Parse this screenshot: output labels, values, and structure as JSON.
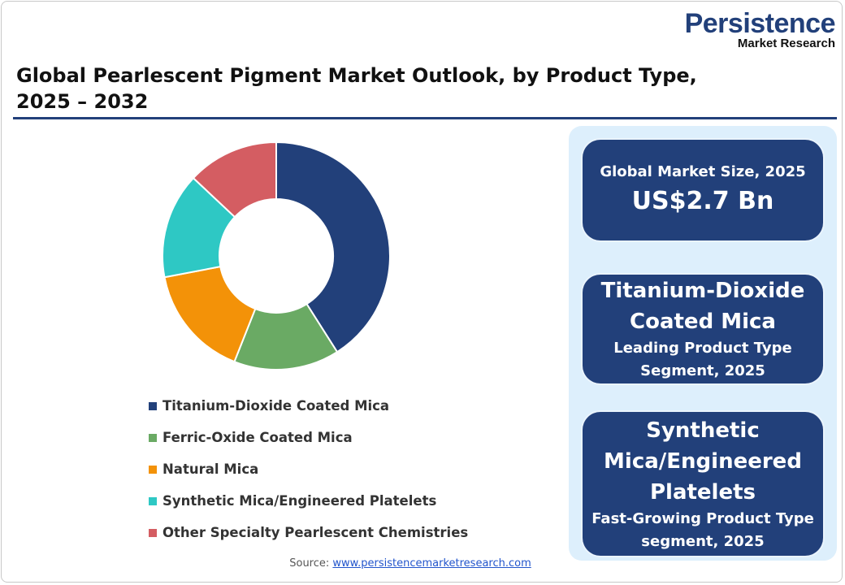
{
  "logo": {
    "line1": "Persistence",
    "line2": "Market Research"
  },
  "title": "Global Pearlescent Pigment Market Outlook, by Product Type, 2025 – 2032",
  "chart_data": {
    "type": "pie",
    "donut": true,
    "categories": [
      "Titanium-Dioxide Coated Mica",
      "Ferric-Oxide Coated Mica",
      "Natural Mica",
      "Synthetic Mica/Engineered Platelets",
      "Other Specialty Pearlescent Chemistries"
    ],
    "values": [
      41,
      15,
      16,
      15,
      13
    ],
    "colors": [
      "#22407a",
      "#6aaa64",
      "#f39208",
      "#2ec8c4",
      "#d45d62"
    ],
    "legend_position": "bottom"
  },
  "panel": {
    "box1": {
      "label": "Global Market Size, 2025",
      "value": "US$2.7 Bn"
    },
    "box2": {
      "title_line1": "Titanium-Dioxide",
      "title_line2": "Coated Mica",
      "sub_line1": "Leading Product Type",
      "sub_line2": "Segment, 2025"
    },
    "box3": {
      "title_line1": "Synthetic",
      "title_line2": "Mica/Engineered",
      "title_line3": "Platelets",
      "sub_line1": "Fast-Growing Product Type",
      "sub_line2": "segment, 2025"
    }
  },
  "source": {
    "label": "Source:",
    "link": "www.persistencemarketresearch.com"
  }
}
